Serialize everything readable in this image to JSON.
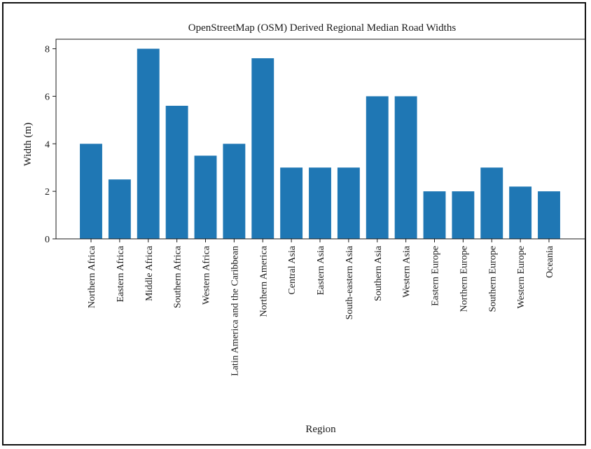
{
  "chart_data": {
    "type": "bar",
    "title": "OpenStreetMap (OSM) Derived Regional Median Road Widths",
    "xlabel": "Region",
    "ylabel": "Width (m)",
    "ylim": [
      0,
      8.4
    ],
    "yticks": [
      0,
      2,
      4,
      6,
      8
    ],
    "grid": false,
    "bar_color": "#1f77b4",
    "categories": [
      "Northern Africa",
      "Eastern Africa",
      "Middle Africa",
      "Southern Africa",
      "Western Africa",
      "Latin America and the Caribbean",
      "Northern America",
      "Central Asia",
      "Eastern Asia",
      "South-eastern Asia",
      "Southern Asia",
      "Western Asia",
      "Eastern Europe",
      "Northern Europe",
      "Southern Europe",
      "Western Europe",
      "Oceania"
    ],
    "values": [
      4.0,
      2.5,
      8.0,
      5.6,
      3.5,
      4.0,
      7.6,
      3.0,
      3.0,
      3.0,
      6.0,
      6.0,
      2.0,
      2.0,
      3.0,
      2.2,
      2.0
    ]
  }
}
